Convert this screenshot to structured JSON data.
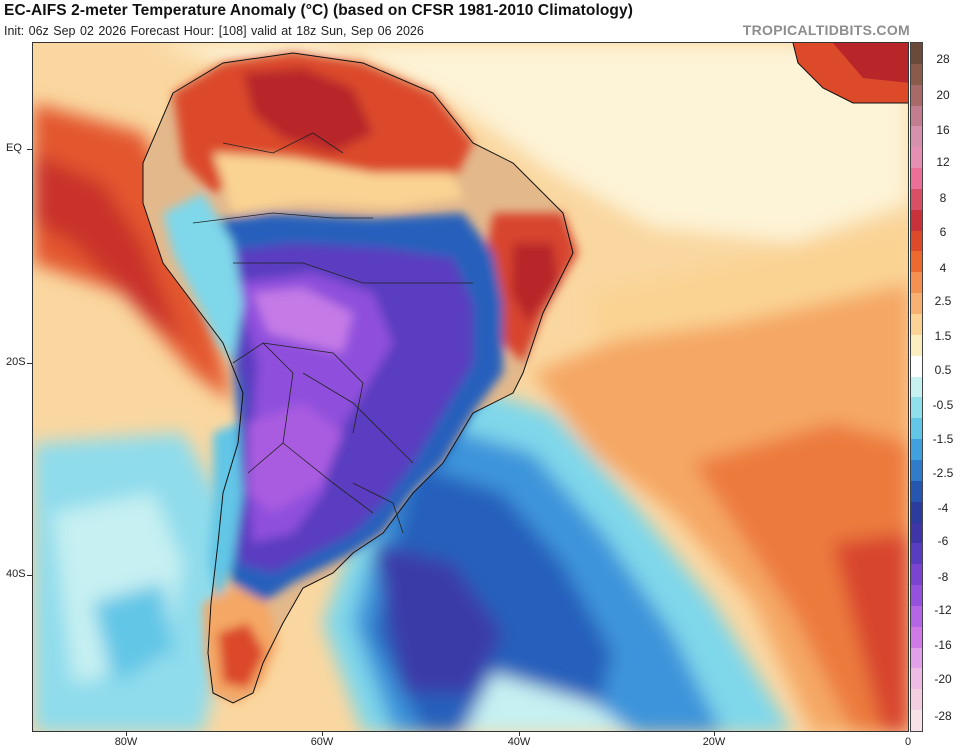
{
  "header": {
    "title": "EC-AIFS 2-meter Temperature Anomaly (°C) (based on CFSR 1981-2010 Climatology)",
    "subtitle": "Init: 06z Sep 02 2026   Forecast Hour: [108]   valid at 18z Sun, Sep 06 2026",
    "brand": "TROPICALTIDBITS.COM"
  },
  "axes": {
    "lat_labels": [
      "EQ",
      "20S",
      "40S"
    ],
    "lon_labels": [
      "80W",
      "60W",
      "40W",
      "20W",
      "0"
    ]
  },
  "colorbar": {
    "labels": [
      "28",
      "20",
      "16",
      "12",
      "8",
      "6",
      "4",
      "2.5",
      "1.5",
      "0.5",
      "-0.5",
      "-1.5",
      "-2.5",
      "-4",
      "-6",
      "-8",
      "-12",
      "-16",
      "-20",
      "-28"
    ],
    "colors": [
      "#6b4a3a",
      "#8a5a4a",
      "#a86a68",
      "#c27d8f",
      "#d692ac",
      "#e58fb4",
      "#ec6f98",
      "#d94f66",
      "#c9323a",
      "#dc4a2a",
      "#ec6a30",
      "#f49050",
      "#f7b272",
      "#fbd394",
      "#fbeec0",
      "#ffffff",
      "#c8f2f2",
      "#8fe0ea",
      "#62c6e6",
      "#3fa1dd",
      "#2f7ccd",
      "#2556b2",
      "#2b3c9e",
      "#3e36a8",
      "#5a3cc0",
      "#7a44d0",
      "#9650de",
      "#b466e6",
      "#d07ae8",
      "#e2a0e8",
      "#eebbe4",
      "#f3cde0",
      "#f7e2e8"
    ]
  },
  "legend": {
    "anomaly_colors": {
      "hot_extreme": "#b8262a",
      "hot": "#d8452e",
      "warm": "#ec7a3c",
      "mild_warm": "#f5a765",
      "slight_warm": "#fad393",
      "neutral": "#fdf3d6",
      "slight_cool": "#c6f0f2",
      "cool": "#7fd7ea",
      "cold": "#3d94da",
      "colder": "#2860bc",
      "very_cold": "#3b3aa8",
      "extreme_cold": "#7a44d0",
      "deep_cold": "#a95ce0"
    }
  }
}
